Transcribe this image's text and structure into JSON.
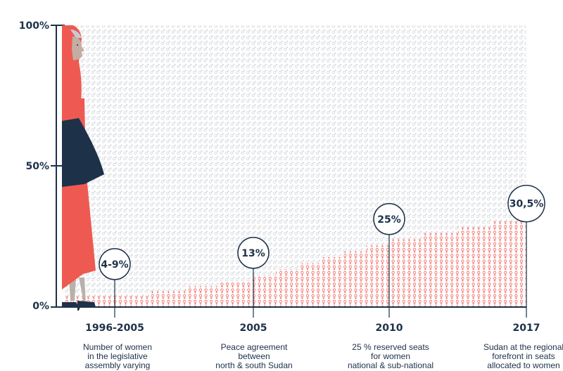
{
  "chart_data": {
    "type": "area",
    "title": "",
    "xlabel": "",
    "ylabel": "",
    "ylim": [
      0,
      100
    ],
    "yticks": [
      "0%",
      "50%",
      "100%"
    ],
    "x": [
      "1996-2005",
      "2005",
      "2010",
      "2017"
    ],
    "values": [
      9,
      13,
      25,
      30.5
    ],
    "value_labels": [
      "4-9%",
      "13%",
      "25%",
      "30,5%"
    ],
    "descriptions": [
      "Number of women\nin the legislative\nassembly varying",
      "Peace agreement\nbetween\nnorth & south Sudan",
      "25 % reserved seats\nfor women\nnational & sub-national",
      "Sudan at the regional\nforefront in seats\nallocated to women"
    ],
    "colors": {
      "female_symbol": "#ee5a52",
      "male_symbol": "#c7ccd3",
      "text": "#1d3149",
      "axis": "#1d3149"
    }
  },
  "icons": {
    "female": "venus-icon",
    "male": "mars-icon",
    "figure": "woman-in-hijab-illustration"
  }
}
